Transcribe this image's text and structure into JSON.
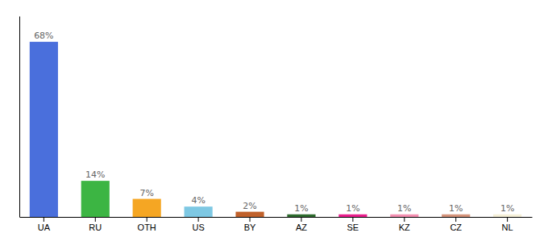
{
  "chart_data": {
    "type": "bar",
    "categories": [
      "UA",
      "RU",
      "OTH",
      "US",
      "BY",
      "AZ",
      "SE",
      "KZ",
      "CZ",
      "NL"
    ],
    "values": [
      68,
      14,
      7,
      4,
      2,
      1,
      1,
      1,
      1,
      1
    ],
    "value_labels": [
      "68%",
      "14%",
      "7%",
      "4%",
      "2%",
      "1%",
      "1%",
      "1%",
      "1%",
      "1%"
    ],
    "colors": [
      "#4a6fdc",
      "#3cb543",
      "#f5a623",
      "#7ec8e3",
      "#c0612b",
      "#2d6a2d",
      "#e91e8c",
      "#f48fb1",
      "#d4937a",
      "#f5f0d8"
    ],
    "ylim": [
      0,
      78
    ],
    "data_labels": true,
    "tick_labels": "x",
    "grid": false
  }
}
